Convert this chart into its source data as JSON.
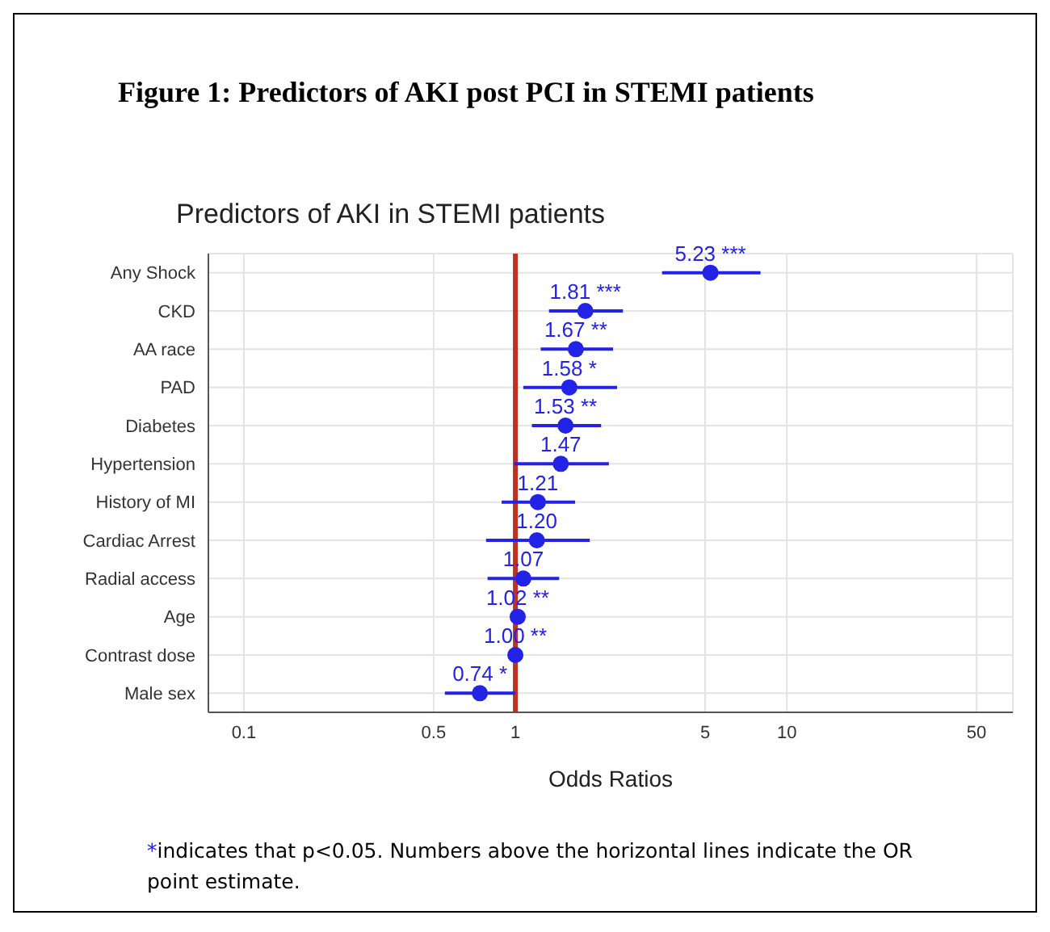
{
  "chart_data": {
    "type": "scatter",
    "title": "Figure 1: Predictors of AKI post PCI in STEMI patients",
    "subtitle": "Predictors of AKI in STEMI patients",
    "xlabel": "Odds Ratios",
    "categories": [
      "Any Shock",
      "CKD",
      "AA race",
      "PAD",
      "Diabetes",
      "Hypertension",
      "History of MI",
      "Cardiac Arrest",
      "Radial access",
      "Age",
      "Contrast dose",
      "Male sex"
    ],
    "series": [
      {
        "color": "#2323e8",
        "values": [
          5.23,
          1.81,
          1.67,
          1.58,
          1.53,
          1.47,
          1.21,
          1.2,
          1.07,
          1.02,
          1.0,
          0.74
        ],
        "errors": [
          [
            3.47,
            8.0
          ],
          [
            1.33,
            2.49
          ],
          [
            1.24,
            2.29
          ],
          [
            1.07,
            2.37
          ],
          [
            1.15,
            2.07
          ],
          [
            0.99,
            2.21
          ],
          [
            0.89,
            1.66
          ],
          [
            0.78,
            1.88
          ],
          [
            0.79,
            1.45
          ],
          null,
          null,
          [
            0.55,
            1.0
          ]
        ],
        "value_labels": [
          "5.23 ***",
          "1.81 ***",
          "1.67 **",
          "1.58 *",
          "1.53 **",
          "1.47",
          "1.21",
          "1.20",
          "1.07",
          "1.02 **",
          "1.00 **",
          "0.74 *"
        ]
      }
    ],
    "orientation": "horizontal",
    "log": "x",
    "xlim": [
      0.074,
      68
    ],
    "xticks": [
      0.1,
      0.5,
      1,
      5,
      10,
      50
    ],
    "ref_lines": [
      {
        "axis": "x",
        "value": 1,
        "color": "#c0311f"
      }
    ],
    "grid": true,
    "marker": "circle",
    "annotations": [
      "*indicates that p<0.05. Numbers above the horizontal lines indicate the OR point estimate."
    ]
  }
}
